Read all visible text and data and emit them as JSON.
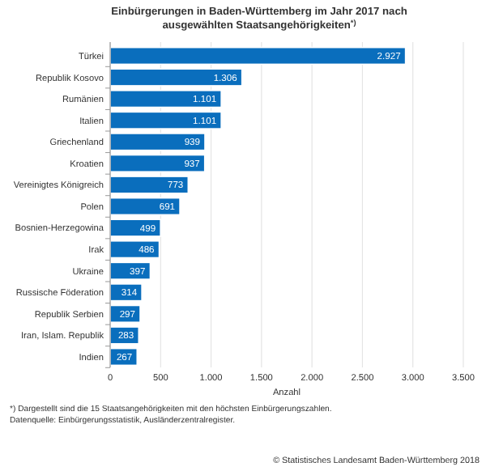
{
  "chart_data": {
    "type": "bar",
    "orientation": "horizontal",
    "title": "Einbürgerungen in Baden-Württemberg im Jahr 2017 nach ausgewählten Staatsangehörigkeiten$^{*)}$",
    "xlabel": "Anzahl",
    "categories": [
      "Türkei",
      "Republik Kosovo",
      "Rumänien",
      "Italien",
      "Griechenland",
      "Kroatien",
      "Vereinigtes Königreich",
      "Polen",
      "Bosnien-Herzegowina",
      "Irak",
      "Ukraine",
      "Russische Föderation",
      "Republik Serbien",
      "Iran, Islam. Republik",
      "Indien"
    ],
    "values": [
      2927,
      1306,
      1101,
      1101,
      939,
      937,
      773,
      691,
      499,
      486,
      397,
      314,
      297,
      283,
      267
    ],
    "value_labels": [
      "2.927",
      "1.306",
      "1.101",
      "1.101",
      "939",
      "937",
      "773",
      "691",
      "499",
      "486",
      "397",
      "314",
      "297",
      "283",
      "267"
    ],
    "color": "#0a6ebd",
    "xlim": [
      0,
      3500
    ],
    "xticks": [
      0,
      500,
      {
        "value": 1000,
        "label": "1.000"
      },
      {
        "value": 1500,
        "label": "1.500"
      },
      {
        "value": 2000,
        "label": "2.000"
      },
      {
        "value": 2500,
        "label": "2.500"
      },
      {
        "value": 3000,
        "label": "3.000"
      },
      {
        "value": 3500,
        "label": "3.500"
      }
    ],
    "grid": "x",
    "annotations": [
      "*) Dargestellt sind die 15 Staatsangehörigkeiten mit den höchsten Einbürgerungszahlen.",
      "Datenquelle: Einbürgerungsstatistik, Ausländerzentralregister.",
      "© Statistisches Landesamt Baden-Württemberg 2018"
    ]
  }
}
